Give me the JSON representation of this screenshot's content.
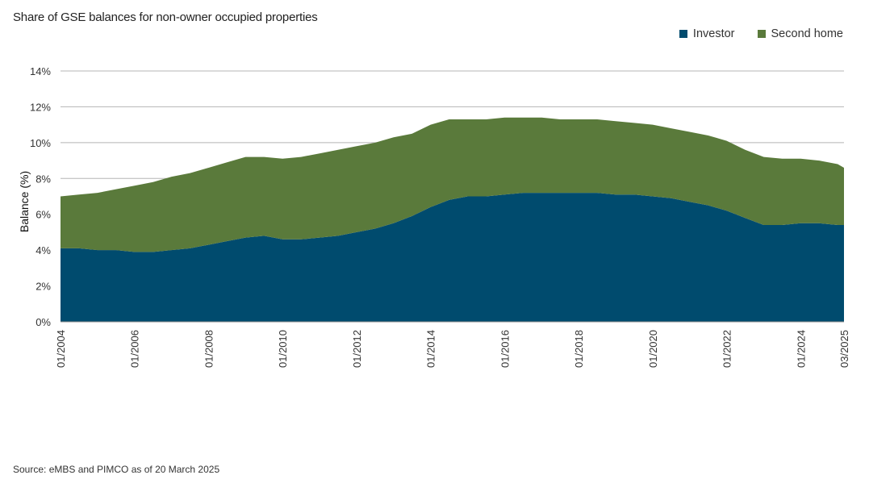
{
  "chart_data": {
    "type": "area",
    "stacked": true,
    "title": "Share of GSE balances for non-owner occupied properties",
    "ylabel": "Balance (%)",
    "xlabel": "",
    "ylim": [
      0,
      14
    ],
    "yticks": [
      "0%",
      "2%",
      "4%",
      "6%",
      "8%",
      "10%",
      "12%",
      "14%"
    ],
    "xticks": [
      "01/2004",
      "01/2006",
      "01/2008",
      "01/2010",
      "01/2012",
      "01/2014",
      "01/2016",
      "01/2018",
      "01/2020",
      "01/2022",
      "01/2024",
      "03/2025"
    ],
    "grid": true,
    "legend_position": "top-right",
    "x": [
      2004.0,
      2004.5,
      2005.0,
      2005.5,
      2006.0,
      2006.5,
      2007.0,
      2007.5,
      2008.0,
      2008.5,
      2009.0,
      2009.5,
      2010.0,
      2010.5,
      2011.0,
      2011.5,
      2012.0,
      2012.5,
      2013.0,
      2013.5,
      2014.0,
      2014.5,
      2015.0,
      2015.5,
      2016.0,
      2016.5,
      2017.0,
      2017.5,
      2018.0,
      2018.5,
      2019.0,
      2019.5,
      2020.0,
      2020.5,
      2021.0,
      2021.5,
      2022.0,
      2022.5,
      2023.0,
      2023.5,
      2024.0,
      2024.5,
      2025.0,
      2025.17
    ],
    "x_labels": [
      "01/2004",
      "07/2004",
      "01/2005",
      "07/2005",
      "01/2006",
      "07/2006",
      "01/2007",
      "07/2007",
      "01/2008",
      "07/2008",
      "01/2009",
      "07/2009",
      "01/2010",
      "07/2010",
      "01/2011",
      "07/2011",
      "01/2012",
      "07/2012",
      "01/2013",
      "07/2013",
      "01/2014",
      "07/2014",
      "01/2015",
      "07/2015",
      "01/2016",
      "07/2016",
      "01/2017",
      "07/2017",
      "01/2018",
      "07/2018",
      "01/2019",
      "07/2019",
      "01/2020",
      "07/2020",
      "01/2021",
      "07/2021",
      "01/2022",
      "07/2022",
      "01/2023",
      "07/2023",
      "01/2024",
      "07/2024",
      "01/2025",
      "03/2025"
    ],
    "series": [
      {
        "name": "Investor",
        "color": "#004b6e",
        "values": [
          4.1,
          4.1,
          4.0,
          4.0,
          3.9,
          3.9,
          4.0,
          4.1,
          4.3,
          4.5,
          4.7,
          4.8,
          4.6,
          4.6,
          4.7,
          4.8,
          5.0,
          5.2,
          5.5,
          5.9,
          6.4,
          6.8,
          7.0,
          7.0,
          7.1,
          7.2,
          7.2,
          7.2,
          7.2,
          7.2,
          7.1,
          7.1,
          7.0,
          6.9,
          6.7,
          6.5,
          6.2,
          5.8,
          5.4,
          5.4,
          5.5,
          5.5,
          5.4,
          5.4
        ]
      },
      {
        "name": "Second home",
        "color": "#5a7a3b",
        "values": [
          2.9,
          3.0,
          3.2,
          3.4,
          3.7,
          3.9,
          4.1,
          4.2,
          4.3,
          4.4,
          4.5,
          4.4,
          4.5,
          4.6,
          4.7,
          4.8,
          4.8,
          4.8,
          4.8,
          4.6,
          4.6,
          4.5,
          4.3,
          4.3,
          4.3,
          4.2,
          4.2,
          4.1,
          4.1,
          4.1,
          4.1,
          4.0,
          4.0,
          3.9,
          3.9,
          3.9,
          3.9,
          3.8,
          3.8,
          3.7,
          3.6,
          3.5,
          3.4,
          3.2
        ]
      }
    ],
    "source": "Source: eMBS and PIMCO as of 20 March 2025"
  }
}
